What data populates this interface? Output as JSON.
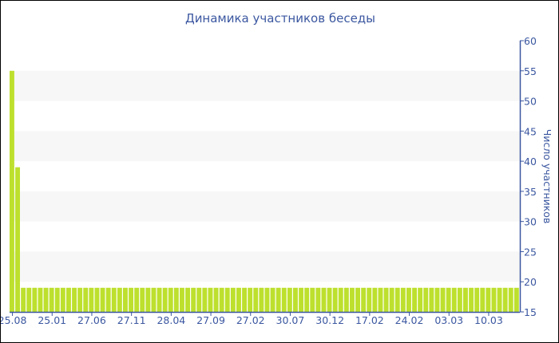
{
  "chart_data": {
    "type": "bar",
    "title": "Динамика участников беседы",
    "ylabel": "Число участников",
    "xlabel": "",
    "ylim": [
      15,
      60
    ],
    "yticks": [
      15,
      20,
      25,
      30,
      35,
      40,
      45,
      50,
      55,
      60
    ],
    "y_axis_position": "right",
    "grid": "alternating bands",
    "x_tick_labels": [
      "25.08",
      "25.01",
      "27.06",
      "27.11",
      "28.04",
      "27.09",
      "27.02",
      "30.07",
      "30.12",
      "17.02",
      "24.02",
      "03.03",
      "10.03"
    ],
    "values": [
      55,
      39,
      19,
      19,
      19,
      19,
      19,
      19,
      19,
      19,
      19,
      19,
      19,
      19,
      19,
      19,
      19,
      19,
      19,
      19,
      19,
      19,
      19,
      19,
      19,
      19,
      19,
      19,
      19,
      19,
      19,
      19,
      19,
      19,
      19,
      19,
      19,
      19,
      19,
      19,
      19,
      19,
      19,
      19,
      19,
      19,
      19,
      19,
      19,
      19,
      19,
      19,
      19,
      19,
      19,
      19,
      19,
      19,
      19,
      19,
      19,
      19,
      19,
      19,
      19,
      19,
      19,
      19,
      19,
      19,
      19,
      19,
      19,
      19,
      19,
      19,
      19,
      19,
      19,
      19,
      19,
      19,
      19,
      19,
      19,
      19,
      19,
      19,
      19,
      19
    ],
    "bar_color": "#bde02e",
    "axis_color": "#3b57a0"
  }
}
